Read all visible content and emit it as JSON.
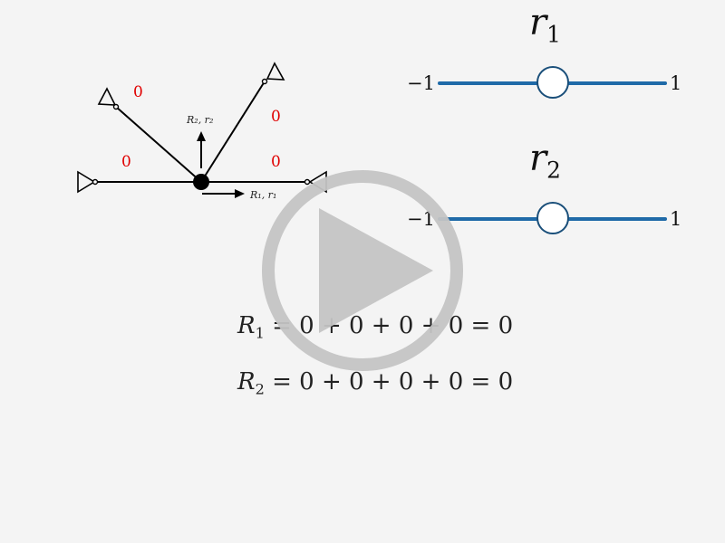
{
  "diagram": {
    "wire_labels": [
      "0",
      "0",
      "0",
      "0"
    ],
    "output1_label": "R₁, r₁",
    "output2_label": "R₂, r₂",
    "label_color": "#e00000",
    "wire_color": "#000000"
  },
  "sliders": [
    {
      "var": "r",
      "sub": "1",
      "min_label": "−1",
      "max_label": "1",
      "value": 0
    },
    {
      "var": "r",
      "sub": "2",
      "min_label": "−1",
      "max_label": "1",
      "value": 0
    }
  ],
  "equations": [
    {
      "var": "R",
      "sub": "1",
      "rhs": "= 0 + 0 + 0 + 0 = 0"
    },
    {
      "var": "R",
      "sub": "2",
      "rhs": "= 0 + 0 + 0 + 0 = 0"
    }
  ],
  "overlay": {
    "icon": "play-icon",
    "color": "#c4c4c4"
  }
}
